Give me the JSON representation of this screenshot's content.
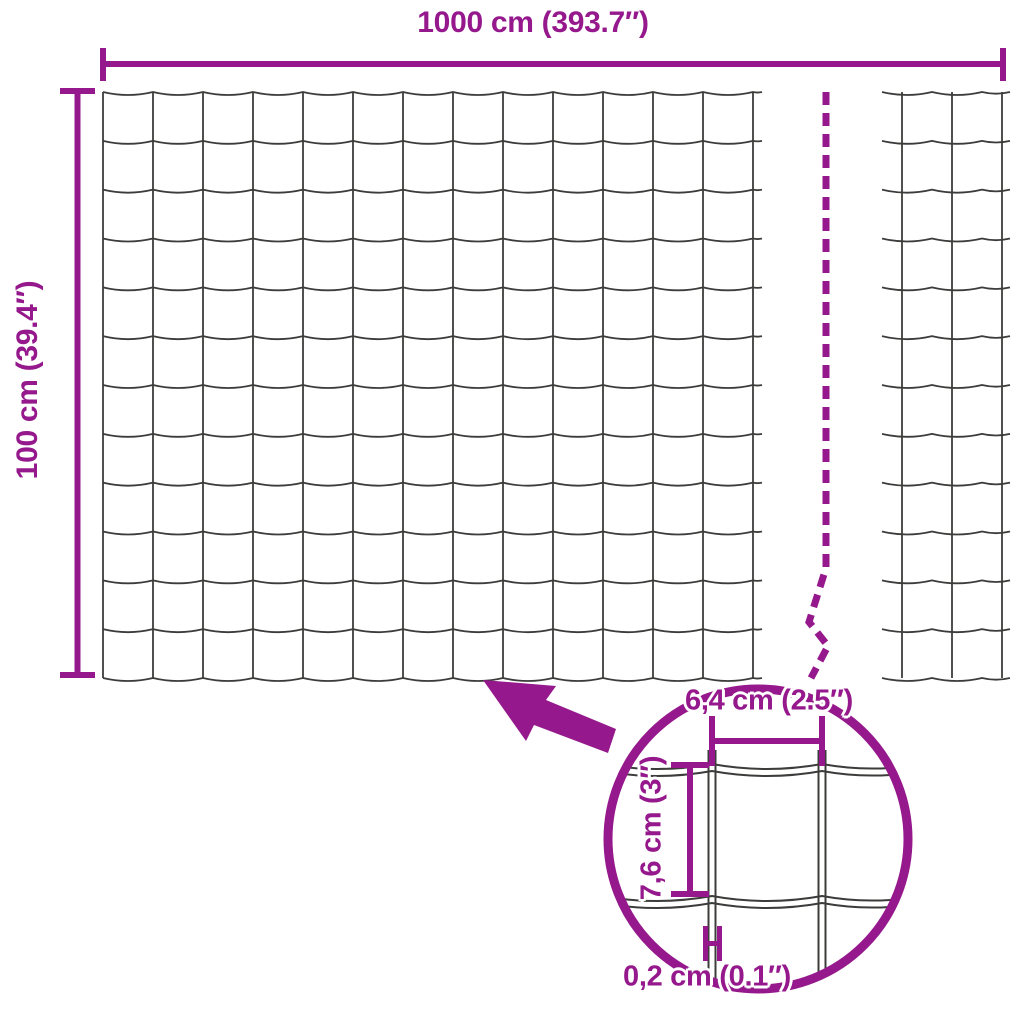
{
  "colors": {
    "accent": "#95198C",
    "wire": "#3C3C3B",
    "background": "#FFFFFF"
  },
  "dimensions": {
    "width_label": "1000 cm (393.7″)",
    "height_label": "100 cm (39.4″)"
  },
  "detail": {
    "mesh_width_label": "6,4 cm (2.5″)",
    "mesh_height_label": "7,6 cm (3″)",
    "wire_thickness_label": "0,2 cm (0.1″)"
  },
  "mesh": {
    "main_section": {
      "horizontal_wires": 13,
      "vertical_wires": 14
    },
    "right_section": {
      "horizontal_wires": 13,
      "vertical_wires": 3
    },
    "detail_section": {
      "horizontal_wires": 2,
      "vertical_wires": 2
    }
  }
}
